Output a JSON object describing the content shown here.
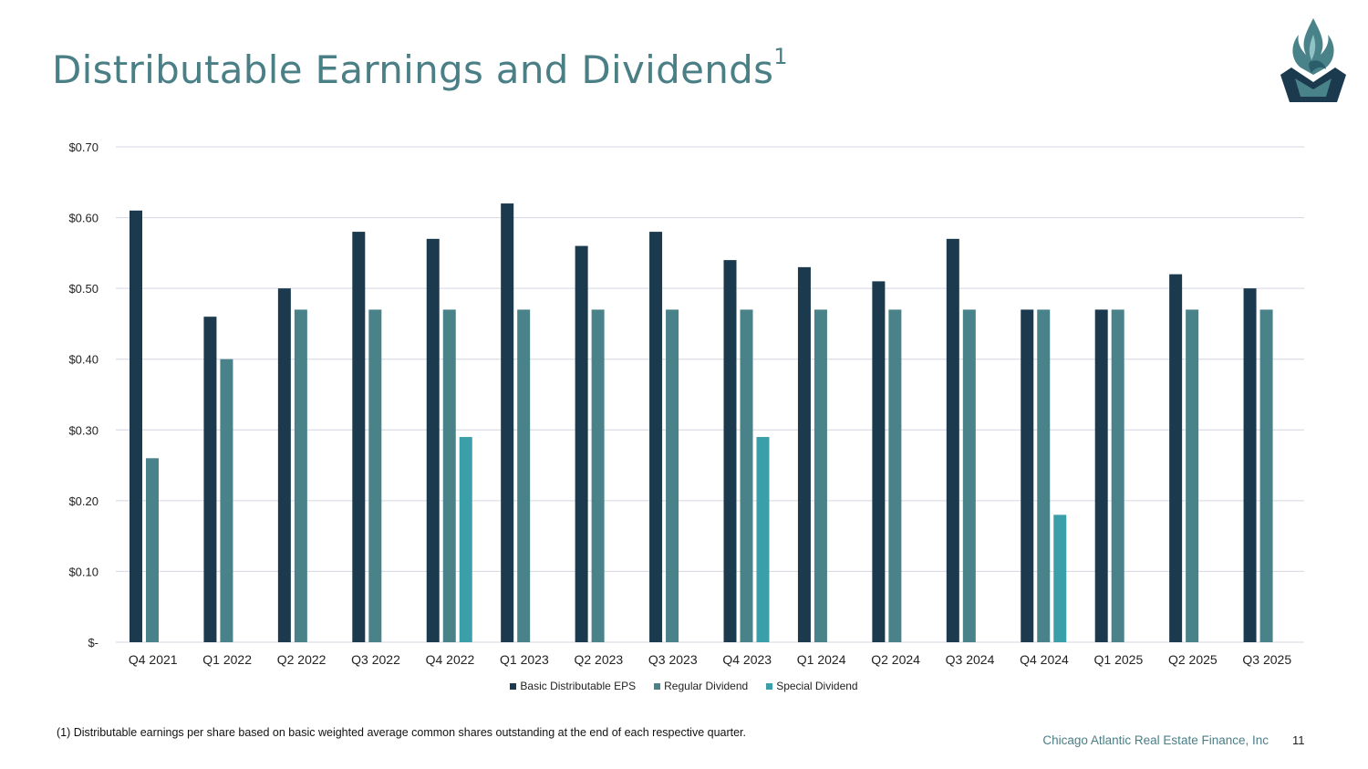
{
  "title": "Distributable Earnings and Dividends",
  "title_superscript": "1",
  "footnote": "(1) Distributable earnings per share based on basic weighted average common shares outstanding at the end of each respective quarter.",
  "company": "Chicago Atlantic Real Estate Finance, Inc",
  "page_number": "11",
  "colors": {
    "eps": "#1b3a4d",
    "regular": "#4a8289",
    "special": "#3a9fa8",
    "grid": "#d4d6e0",
    "title": "#4a7f86"
  },
  "chart_data": {
    "type": "bar",
    "categories": [
      "Q4 2021",
      "Q1 2022",
      "Q2 2022",
      "Q3 2022",
      "Q4 2022",
      "Q1 2023",
      "Q2 2023",
      "Q3 2023",
      "Q4 2023",
      "Q1 2024",
      "Q2 2024",
      "Q3 2024",
      "Q4 2024",
      "Q1 2025",
      "Q2 2025",
      "Q3 2025"
    ],
    "series": [
      {
        "name": "Basic Distributable EPS",
        "key": "eps",
        "values": [
          0.61,
          0.46,
          0.5,
          0.58,
          0.57,
          0.62,
          0.56,
          0.58,
          0.54,
          0.53,
          0.51,
          0.57,
          0.47,
          0.47,
          0.52,
          0.5
        ]
      },
      {
        "name": "Regular Dividend",
        "key": "regular",
        "values": [
          0.26,
          0.4,
          0.47,
          0.47,
          0.47,
          0.47,
          0.47,
          0.47,
          0.47,
          0.47,
          0.47,
          0.47,
          0.47,
          0.47,
          0.47,
          0.47
        ]
      },
      {
        "name": "Special Dividend",
        "key": "special",
        "values": [
          null,
          null,
          null,
          null,
          0.29,
          null,
          null,
          null,
          0.29,
          null,
          null,
          null,
          0.18,
          null,
          null,
          null
        ]
      }
    ],
    "y_ticks": [
      0,
      0.1,
      0.2,
      0.3,
      0.4,
      0.5,
      0.6,
      0.7
    ],
    "y_tick_labels": [
      "$-",
      "$0.10",
      "$0.20",
      "$0.30",
      "$0.40",
      "$0.50",
      "$0.60",
      "$0.70"
    ],
    "ylim": [
      0,
      0.7
    ],
    "grid": true,
    "legend_position": "bottom-center"
  }
}
